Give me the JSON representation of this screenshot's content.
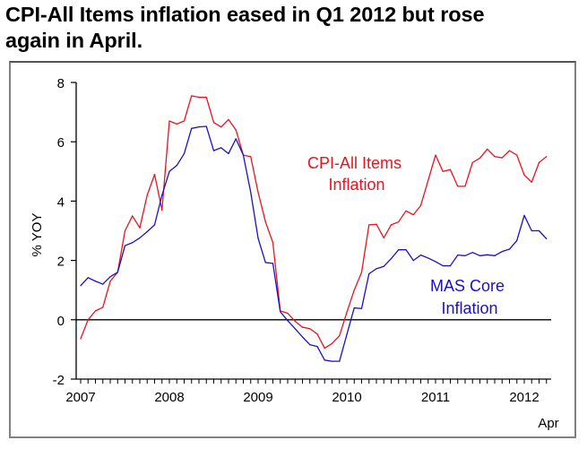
{
  "title": "CPI-All Items inflation eased in Q1 2012 but rose again in April.",
  "title_lines": [
    "CPI-All Items inflation eased in Q1 2012 but rose",
    "again in April."
  ],
  "chart_data": {
    "type": "line",
    "title": "CPI-All Items inflation eased in Q1 2012 but rose again in April.",
    "xlabel": "",
    "ylabel": "% YOY",
    "ylim": [
      -2,
      8
    ],
    "yticks": [
      -2,
      0,
      2,
      4,
      6,
      8
    ],
    "ytick_labels": [
      "-2",
      "0",
      "2",
      "4",
      "6",
      "8"
    ],
    "xtick_labels": [
      "2007",
      "2008",
      "2009",
      "2010",
      "2011",
      "2012"
    ],
    "x_end_label": "Apr",
    "x_start": "2007-01",
    "x_end": "2012-04",
    "frequency": "monthly",
    "months_count": 64,
    "grid": false,
    "zero_line": true,
    "legend": "inline labels",
    "series": [
      {
        "name": "CPI-All Items Inflation",
        "label_lines": [
          "CPI-All Items",
          "Inflation"
        ],
        "color": "#e8141f",
        "values": [
          -0.64,
          0.0,
          0.3,
          0.42,
          1.3,
          1.6,
          3.0,
          3.5,
          3.1,
          4.2,
          4.9,
          3.7,
          6.7,
          6.6,
          6.7,
          7.55,
          7.5,
          7.5,
          6.65,
          6.5,
          6.75,
          6.4,
          5.55,
          5.5,
          4.3,
          3.3,
          2.6,
          0.3,
          0.22,
          -0.05,
          -0.25,
          -0.3,
          -0.48,
          -0.96,
          -0.8,
          -0.54,
          0.25,
          1.0,
          1.6,
          3.2,
          3.22,
          2.76,
          3.2,
          3.3,
          3.67,
          3.54,
          3.85,
          4.7,
          5.55,
          5.0,
          5.06,
          4.5,
          4.5,
          5.3,
          5.45,
          5.75,
          5.5,
          5.46,
          5.7,
          5.55,
          4.88,
          4.64,
          5.3,
          5.5
        ]
      },
      {
        "name": "MAS Core Inflation",
        "label_lines": [
          "MAS Core",
          "Inflation"
        ],
        "color": "#1a10c8",
        "values": [
          1.15,
          1.42,
          1.3,
          1.2,
          1.45,
          1.6,
          2.5,
          2.6,
          2.76,
          2.97,
          3.2,
          4.2,
          5.0,
          5.2,
          5.6,
          6.45,
          6.5,
          6.52,
          5.7,
          5.8,
          5.6,
          6.1,
          5.55,
          4.3,
          2.75,
          1.93,
          1.9,
          0.27,
          -0.03,
          -0.3,
          -0.58,
          -0.84,
          -0.9,
          -1.36,
          -1.4,
          -1.4,
          -0.5,
          0.4,
          0.38,
          1.55,
          1.72,
          1.8,
          2.06,
          2.36,
          2.36,
          2.0,
          2.18,
          2.08,
          1.96,
          1.82,
          1.82,
          2.18,
          2.16,
          2.27,
          2.16,
          2.19,
          2.16,
          2.3,
          2.38,
          2.67,
          3.52,
          3.0,
          3.0,
          2.73
        ]
      }
    ]
  }
}
